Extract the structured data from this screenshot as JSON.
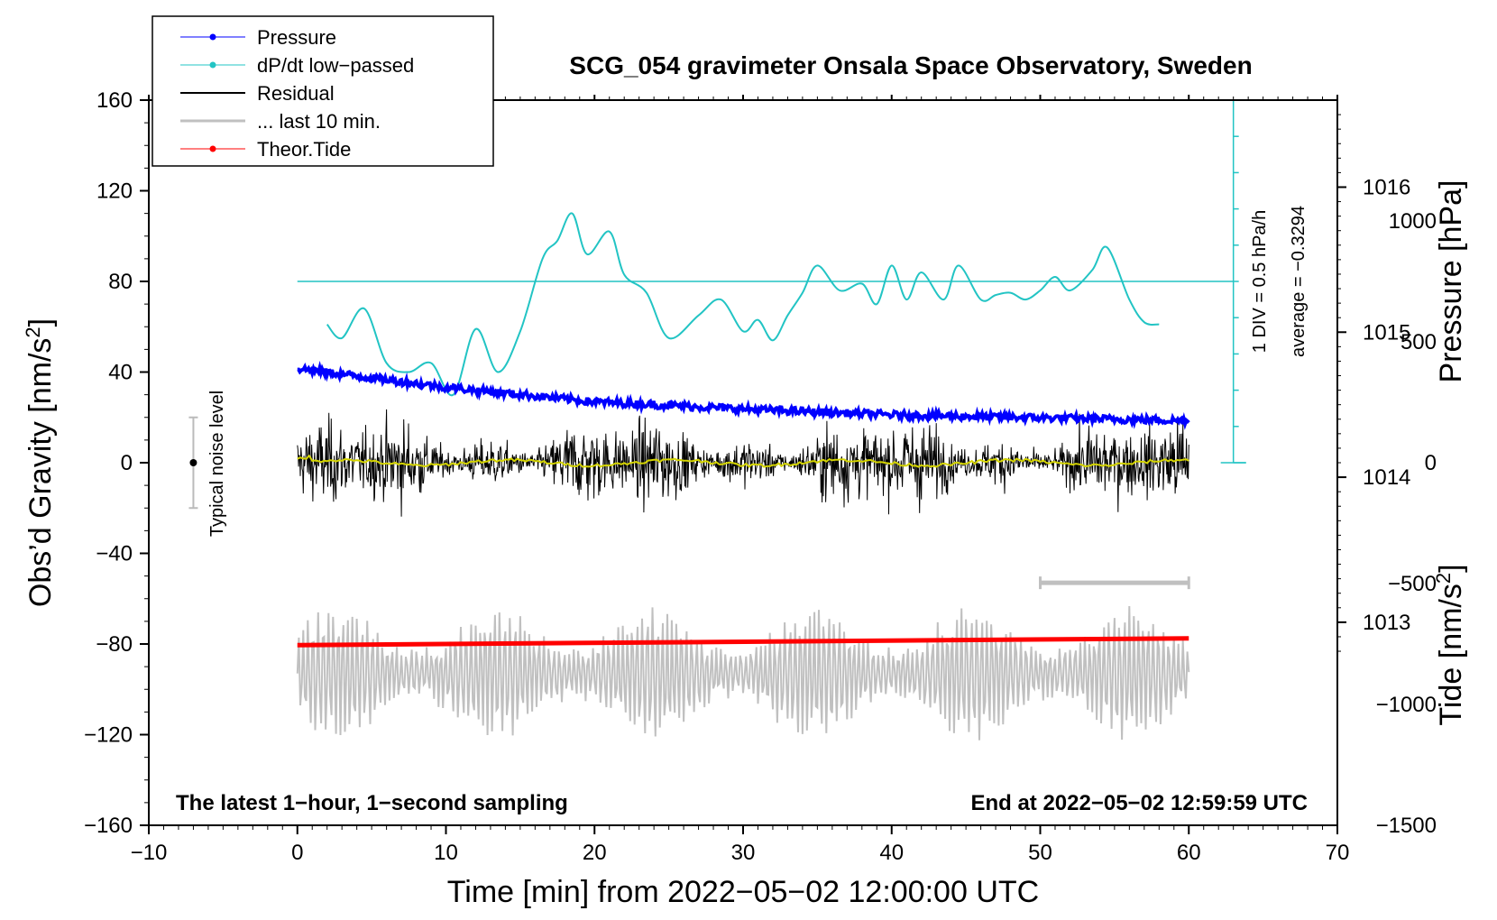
{
  "chart_data": {
    "type": "line",
    "title": "SCG_054 gravimeter Onsala Space Observatory, Sweden",
    "xlabel": "Time [min] from 2022−05−02 12:00:00 UTC",
    "ylabel_left": "Obs’d Gravity [nm/s",
    "ylabel_left_sup": "2",
    "ylabel_left_end": "]",
    "ylabel_right_top": "Pressure [hPa]",
    "ylabel_right_bottom": "Tide [nm/s",
    "ylabel_right_bottom_sup": "2",
    "ylabel_right_bottom_end": "]",
    "xlim": [
      -10,
      70
    ],
    "ylim_left": [
      -160,
      160
    ],
    "x_ticks": [
      {
        "v": -10,
        "t": "−10"
      },
      {
        "v": 0,
        "t": "0"
      },
      {
        "v": 10,
        "t": "10"
      },
      {
        "v": 20,
        "t": "20"
      },
      {
        "v": 30,
        "t": "30"
      },
      {
        "v": 40,
        "t": "40"
      },
      {
        "v": 50,
        "t": "50"
      },
      {
        "v": 60,
        "t": "60"
      },
      {
        "v": 70,
        "t": "70"
      }
    ],
    "y_left_ticks": [
      {
        "v": 160,
        "t": "160"
      },
      {
        "v": 120,
        "t": "120"
      },
      {
        "v": 80,
        "t": "80"
      },
      {
        "v": 40,
        "t": "40"
      },
      {
        "v": 0,
        "t": "0"
      },
      {
        "v": -40,
        "t": "−40"
      },
      {
        "v": -80,
        "t": "−80"
      },
      {
        "v": -120,
        "t": "−120"
      },
      {
        "v": -160,
        "t": "−160"
      }
    ],
    "pressure_axis": {
      "range_hPa": [
        1011.6,
        1016.6
      ],
      "ticks": [
        {
          "v": 1016,
          "t": "1016"
        },
        {
          "v": 1015,
          "t": "1015"
        },
        {
          "v": 1014,
          "t": "1014"
        },
        {
          "v": 1013,
          "t": "1013"
        }
      ]
    },
    "tide_axis": {
      "range": [
        -1500,
        1500
      ],
      "ticks": [
        {
          "v": 1000,
          "t": "1000"
        },
        {
          "v": 500,
          "t": "500"
        },
        {
          "v": 0,
          "t": "0"
        },
        {
          "v": -500,
          "t": "−500"
        },
        {
          "v": -1000,
          "t": "−1000"
        },
        {
          "v": -1500,
          "t": "−1500"
        }
      ]
    },
    "series": [
      {
        "name": "Pressure",
        "color": "#0000ff",
        "x": [
          0,
          10,
          20,
          30,
          40,
          50,
          60
        ],
        "y_hPa": [
          1014.75,
          1014.62,
          1014.52,
          1014.47,
          1014.43,
          1014.41,
          1014.39
        ]
      },
      {
        "name": "dP/dt low−passed",
        "color": "#22c4c4",
        "baseline_gravity": 80,
        "x": [
          2,
          3,
          4.5,
          6,
          7.5,
          9,
          10.5,
          12,
          13.5,
          15,
          16.5,
          17.5,
          18.5,
          19.5,
          21,
          22,
          23.5,
          25,
          27,
          28.5,
          30,
          31,
          32,
          33,
          34,
          35,
          36.5,
          38,
          39,
          40,
          41,
          42,
          43.5,
          44.5,
          46,
          47,
          48,
          49,
          50,
          51,
          52,
          53.5,
          54.5,
          56,
          57,
          58
        ],
        "y": [
          61,
          55,
          68,
          44,
          40,
          44,
          30,
          59,
          40,
          58,
          90,
          98,
          110,
          92,
          102,
          83,
          75,
          55,
          65,
          72,
          58,
          63,
          54,
          65,
          75,
          87,
          76,
          79,
          70,
          87,
          72,
          84,
          72,
          87,
          72,
          74,
          75,
          72,
          76,
          82,
          76,
          85,
          95,
          72,
          62,
          61
        ]
      },
      {
        "name": "Residual",
        "color": "#000000",
        "x_range": [
          0,
          60
        ],
        "sigma": 12
      },
      {
        "name": "... last 10 min.",
        "color": "#c0c0c0",
        "x_range": [
          0,
          60
        ],
        "offset": -93
      },
      {
        "name": "Theor.Tide",
        "color": "#ff0000",
        "x": [
          0,
          60
        ],
        "y": [
          -80.5,
          -77.5
        ]
      }
    ],
    "legend": {
      "position": "top-left",
      "entries": [
        {
          "label": "Pressure",
          "color": "#0000ff",
          "marker": true,
          "width": 1
        },
        {
          "label": "dP/dt low−passed",
          "color": "#22c4c4",
          "marker": true,
          "width": 1
        },
        {
          "label": "Residual",
          "color": "#000000",
          "marker": false,
          "width": 2
        },
        {
          "label": "... last 10 min.",
          "color": "#c0c0c0",
          "marker": false,
          "width": 3
        },
        {
          "label": "Theor.Tide",
          "color": "#ff0000",
          "marker": true,
          "width": 1
        }
      ]
    },
    "annotations": {
      "noise_label": "Typical noise level",
      "noise_range": [
        -20,
        20
      ],
      "div_label": "1 DIV = 0.5 hPa/h",
      "average_label": "average = −0.3294",
      "last10_bar": {
        "x": [
          50,
          60
        ],
        "y": -53
      },
      "bottom_left": "The latest 1−hour, 1−second sampling",
      "bottom_right": "End at 2022−05−02 12:59:59 UTC"
    }
  }
}
